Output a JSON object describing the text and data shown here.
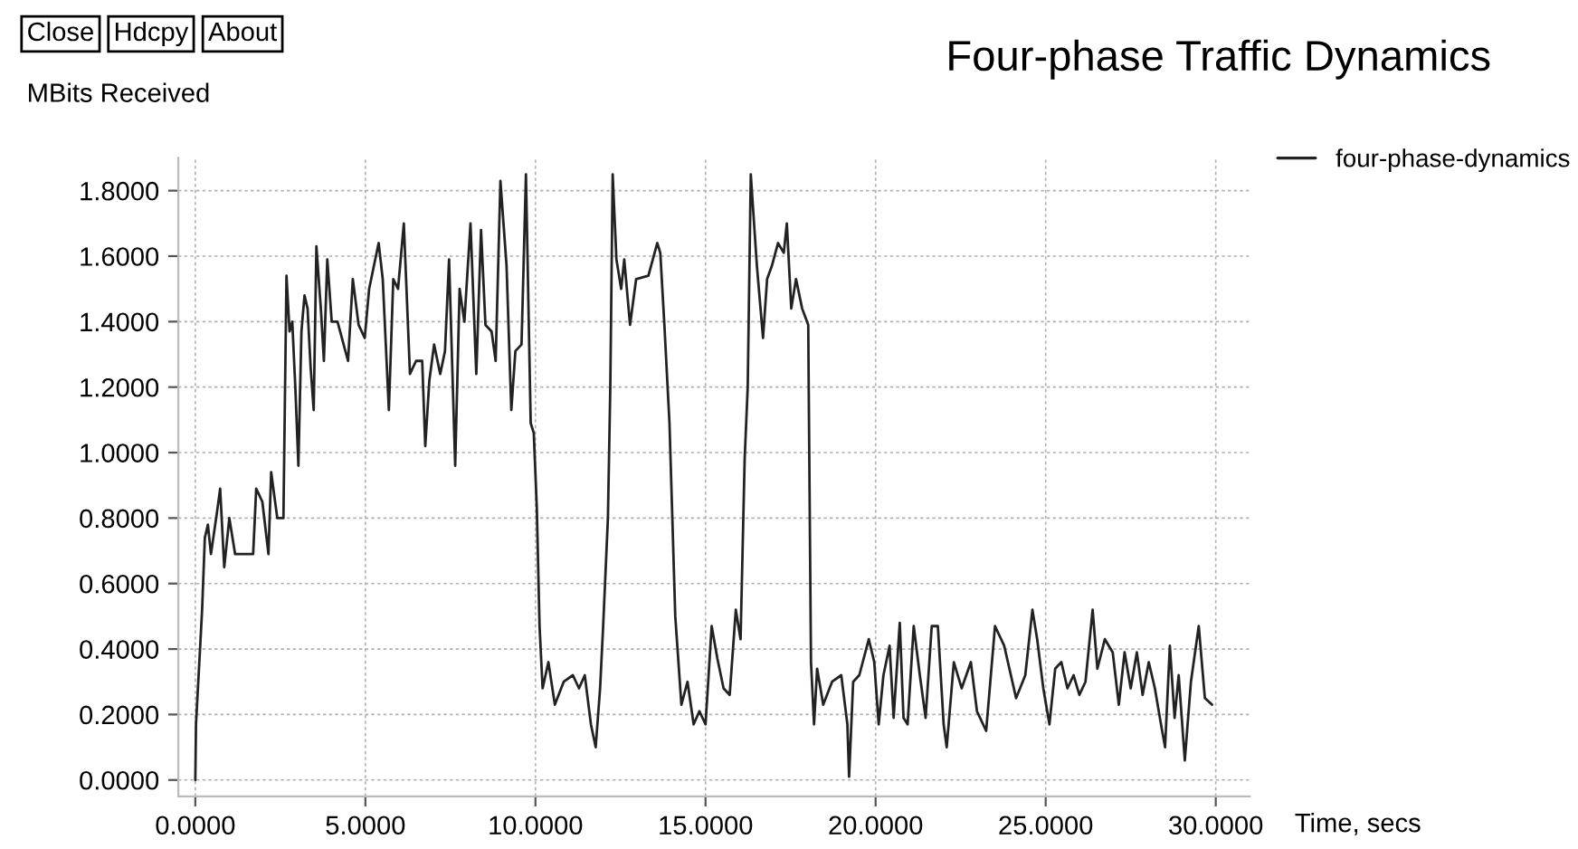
{
  "chart_data": {
    "type": "line",
    "title": "Four-phase Traffic Dynamics",
    "ylabel": "MBits Received",
    "xlabel": "Time, secs",
    "annotations": [
      "Close",
      "Hdcpy",
      "About"
    ],
    "legend": "top right",
    "grid": true,
    "line_style": "solid",
    "marker": "none",
    "xlim": [
      -0.5,
      31
    ],
    "ylim": [
      -0.05,
      1.9
    ],
    "xticks": [
      {
        "value": 0,
        "label": "0.0000"
      },
      {
        "value": 5,
        "label": "5.0000"
      },
      {
        "value": 10,
        "label": "10.0000"
      },
      {
        "value": 15,
        "label": "15.0000"
      },
      {
        "value": 20,
        "label": "20.0000"
      },
      {
        "value": 25,
        "label": "25.0000"
      },
      {
        "value": 30,
        "label": "30.0000"
      }
    ],
    "yticks": [
      {
        "value": 0,
        "label": "0.0000"
      },
      {
        "value": 0.2,
        "label": "0.2000"
      },
      {
        "value": 0.4,
        "label": "0.4000"
      },
      {
        "value": 0.6,
        "label": "0.6000"
      },
      {
        "value": 0.8,
        "label": "0.8000"
      },
      {
        "value": 1.0,
        "label": "1.0000"
      },
      {
        "value": 1.2,
        "label": "1.2000"
      },
      {
        "value": 1.4,
        "label": "1.4000"
      },
      {
        "value": 1.6,
        "label": "1.6000"
      },
      {
        "value": 1.8,
        "label": "1.8000"
      }
    ],
    "series": [
      {
        "name": "four-phase-dynamics",
        "color": "#222222",
        "x": [
          0,
          0.02,
          0.2,
          0.28,
          0.37,
          0.46,
          0.64,
          0.73,
          0.85,
          1.0,
          1.17,
          1.35,
          1.7,
          1.79,
          1.97,
          2.15,
          2.23,
          2.41,
          2.59,
          2.68,
          2.77,
          2.85,
          2.94,
          3.03,
          3.12,
          3.21,
          3.3,
          3.39,
          3.48,
          3.56,
          3.69,
          3.78,
          3.88,
          4.01,
          4.18,
          4.36,
          4.49,
          4.63,
          4.8,
          4.98,
          5.11,
          5.25,
          5.39,
          5.51,
          5.69,
          5.82,
          5.96,
          6.13,
          6.31,
          6.49,
          6.67,
          6.76,
          6.88,
          7.02,
          7.2,
          7.34,
          7.46,
          7.64,
          7.77,
          7.91,
          8.09,
          8.26,
          8.4,
          8.53,
          8.71,
          8.83,
          8.97,
          9.15,
          9.29,
          9.41,
          9.59,
          9.72,
          9.86,
          9.95,
          10.04,
          10.12,
          10.21,
          10.38,
          10.57,
          10.83,
          11.1,
          11.28,
          11.45,
          11.63,
          11.77,
          11.9,
          11.99,
          12.13,
          12.2,
          12.27,
          12.38,
          12.52,
          12.61,
          12.78,
          12.96,
          13.32,
          13.58,
          13.67,
          13.79,
          13.94,
          14.11,
          14.29,
          14.47,
          14.65,
          14.82,
          15.0,
          15.18,
          15.35,
          15.53,
          15.71,
          15.89,
          16.03,
          16.15,
          16.24,
          16.33,
          16.51,
          16.69,
          16.81,
          16.95,
          17.13,
          17.3,
          17.39,
          17.52,
          17.66,
          17.84,
          18.02,
          18.03,
          18.1,
          18.19,
          18.28,
          18.46,
          18.72,
          18.99,
          19.17,
          19.22,
          19.34,
          19.52,
          19.8,
          19.96,
          20.09,
          20.23,
          20.41,
          20.53,
          20.71,
          20.82,
          20.94,
          21.12,
          21.3,
          21.47,
          21.65,
          21.83,
          22.0,
          22.09,
          22.3,
          22.53,
          22.8,
          22.98,
          23.25,
          23.51,
          23.78,
          24.13,
          24.4,
          24.61,
          24.75,
          24.93,
          25.11,
          25.28,
          25.46,
          25.64,
          25.82,
          25.99,
          26.17,
          26.38,
          26.52,
          26.74,
          26.97,
          27.15,
          27.32,
          27.5,
          27.68,
          27.85,
          28.03,
          28.21,
          28.39,
          28.51,
          28.65,
          28.79,
          28.91,
          29.09,
          29.27,
          29.5,
          29.68,
          29.89
        ],
        "values": [
          0,
          0.17,
          0.52,
          0.74,
          0.78,
          0.69,
          0.82,
          0.89,
          0.65,
          0.8,
          0.69,
          0.69,
          0.69,
          0.89,
          0.85,
          0.69,
          0.94,
          0.8,
          0.8,
          1.54,
          1.37,
          1.4,
          1.2,
          0.96,
          1.37,
          1.48,
          1.44,
          1.26,
          1.13,
          1.63,
          1.44,
          1.28,
          1.59,
          1.4,
          1.4,
          1.33,
          1.28,
          1.53,
          1.39,
          1.35,
          1.5,
          1.57,
          1.64,
          1.53,
          1.13,
          1.53,
          1.5,
          1.7,
          1.24,
          1.28,
          1.28,
          1.02,
          1.22,
          1.33,
          1.24,
          1.31,
          1.59,
          0.96,
          1.5,
          1.4,
          1.7,
          1.24,
          1.68,
          1.39,
          1.37,
          1.28,
          1.83,
          1.57,
          1.13,
          1.31,
          1.33,
          1.85,
          1.09,
          1.06,
          0.83,
          0.47,
          0.28,
          0.36,
          0.23,
          0.3,
          0.32,
          0.28,
          0.32,
          0.17,
          0.1,
          0.28,
          0.47,
          0.8,
          1.2,
          1.85,
          1.59,
          1.5,
          1.59,
          1.39,
          1.53,
          1.54,
          1.64,
          1.61,
          1.39,
          1.09,
          0.5,
          0.23,
          0.3,
          0.17,
          0.21,
          0.17,
          0.47,
          0.37,
          0.28,
          0.26,
          0.52,
          0.43,
          0.98,
          1.2,
          1.85,
          1.57,
          1.35,
          1.53,
          1.57,
          1.64,
          1.61,
          1.7,
          1.44,
          1.53,
          1.44,
          1.39,
          1.24,
          0.36,
          0.17,
          0.34,
          0.23,
          0.3,
          0.32,
          0.17,
          0.01,
          0.3,
          0.32,
          0.43,
          0.36,
          0.17,
          0.32,
          0.41,
          0.19,
          0.48,
          0.19,
          0.17,
          0.47,
          0.32,
          0.19,
          0.47,
          0.47,
          0.17,
          0.1,
          0.36,
          0.28,
          0.36,
          0.21,
          0.15,
          0.47,
          0.41,
          0.25,
          0.32,
          0.52,
          0.43,
          0.28,
          0.17,
          0.34,
          0.36,
          0.28,
          0.32,
          0.26,
          0.3,
          0.52,
          0.34,
          0.43,
          0.39,
          0.23,
          0.39,
          0.28,
          0.39,
          0.26,
          0.36,
          0.28,
          0.17,
          0.1,
          0.41,
          0.19,
          0.32,
          0.06,
          0.3,
          0.47,
          0.25,
          0.23
        ]
      }
    ]
  }
}
